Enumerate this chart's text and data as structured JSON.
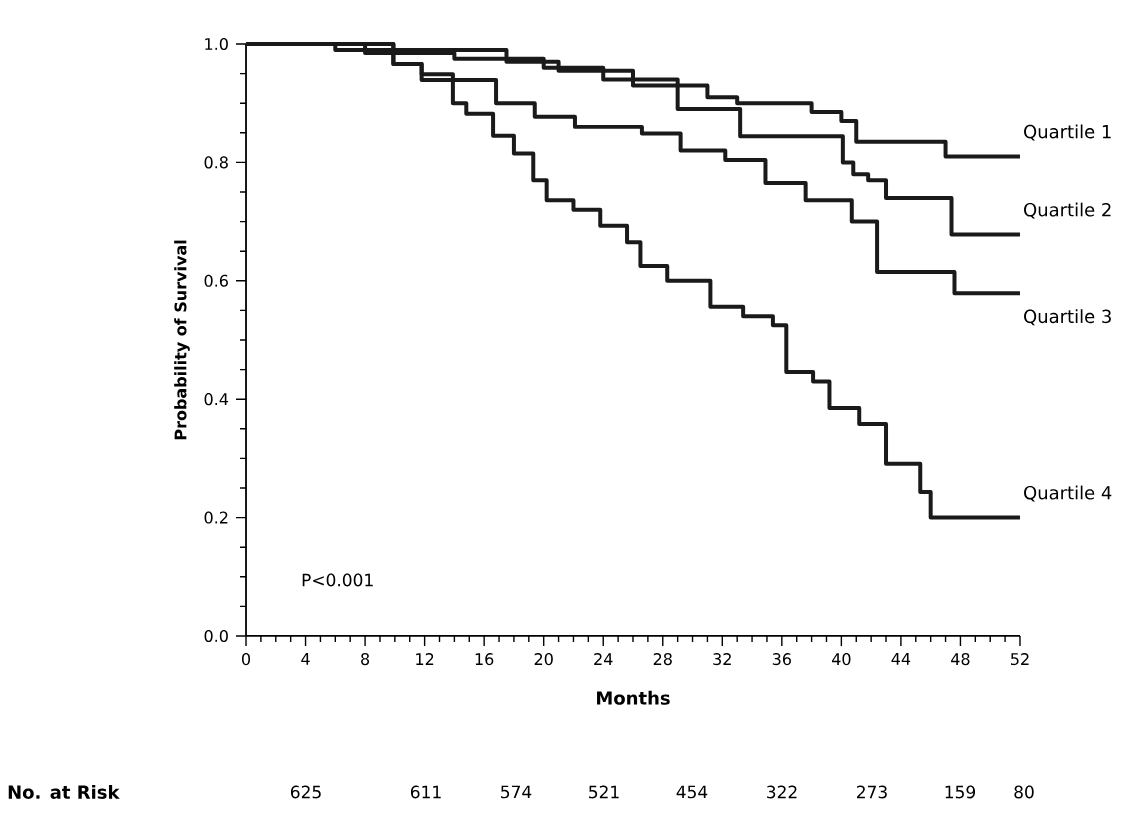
{
  "chart_data": {
    "type": "step",
    "xlabel": "Months",
    "ylabel": "Probability of Survival",
    "xlim": [
      0,
      52
    ],
    "xticks": [
      0,
      4,
      8,
      12,
      16,
      20,
      24,
      28,
      32,
      36,
      40,
      44,
      48,
      52
    ],
    "ylim": [
      0,
      1
    ],
    "yticks": [
      {
        "value": 0,
        "label": "0.0"
      },
      {
        "value": 0.2,
        "label": "0.2"
      },
      {
        "value": 0.4,
        "label": "0.4"
      },
      {
        "value": 0.6,
        "label": "0.6"
      },
      {
        "value": 0.8,
        "label": "0.8"
      },
      {
        "value": 1,
        "label": "1.0"
      }
    ],
    "series": [
      {
        "name": "Quartile 1",
        "color": "#1a1a1a",
        "x": [
          0,
          6,
          17.5,
          21,
          26,
          31,
          33,
          38,
          40,
          41,
          47,
          52
        ],
        "values": [
          1.0,
          0.99,
          0.97,
          0.955,
          0.93,
          0.91,
          0.9,
          0.885,
          0.87,
          0.835,
          0.81,
          0.81
        ]
      },
      {
        "name": "Quartile 2",
        "color": "#1a1a1a",
        "x": [
          0,
          8,
          14,
          20,
          24,
          29,
          33.2,
          40.1,
          40.8,
          41.8,
          43,
          47.4,
          52
        ],
        "values": [
          1.0,
          0.985,
          0.975,
          0.96,
          0.94,
          0.89,
          0.844,
          0.8,
          0.78,
          0.77,
          0.74,
          0.678,
          0.678
        ]
      },
      {
        "name": "Quartile 3",
        "color": "#1a1a1a",
        "x": [
          0,
          9.9,
          11.8,
          16.8,
          19.4,
          22.1,
          26.6,
          29.2,
          32.2,
          34.9,
          37.6,
          40.7,
          42.4,
          47.6,
          52
        ],
        "values": [
          1.0,
          0.966,
          0.939,
          0.9,
          0.877,
          0.86,
          0.849,
          0.82,
          0.804,
          0.765,
          0.736,
          0.7,
          0.615,
          0.579,
          0.579
        ]
      },
      {
        "name": "Quartile 4",
        "color": "#1a1a1a",
        "x": [
          0,
          9.9,
          11.8,
          13.9,
          14.8,
          16.6,
          18.0,
          19.3,
          20.2,
          22.0,
          23.8,
          25.6,
          26.5,
          28.3,
          31.2,
          33.4,
          35.4,
          36.3,
          38.1,
          39.2,
          41.2,
          43,
          45.3,
          46,
          52
        ],
        "values": [
          1.0,
          0.966,
          0.949,
          0.9,
          0.882,
          0.845,
          0.815,
          0.77,
          0.736,
          0.72,
          0.693,
          0.665,
          0.625,
          0.6,
          0.556,
          0.54,
          0.525,
          0.446,
          0.43,
          0.385,
          0.358,
          0.291,
          0.243,
          0.2,
          0.2
        ]
      }
    ],
    "annotations": [
      "P<0.001",
      "No. at Risk",
      "625",
      "611",
      "574",
      "521",
      "454",
      "322",
      "273",
      "159",
      "80"
    ]
  }
}
